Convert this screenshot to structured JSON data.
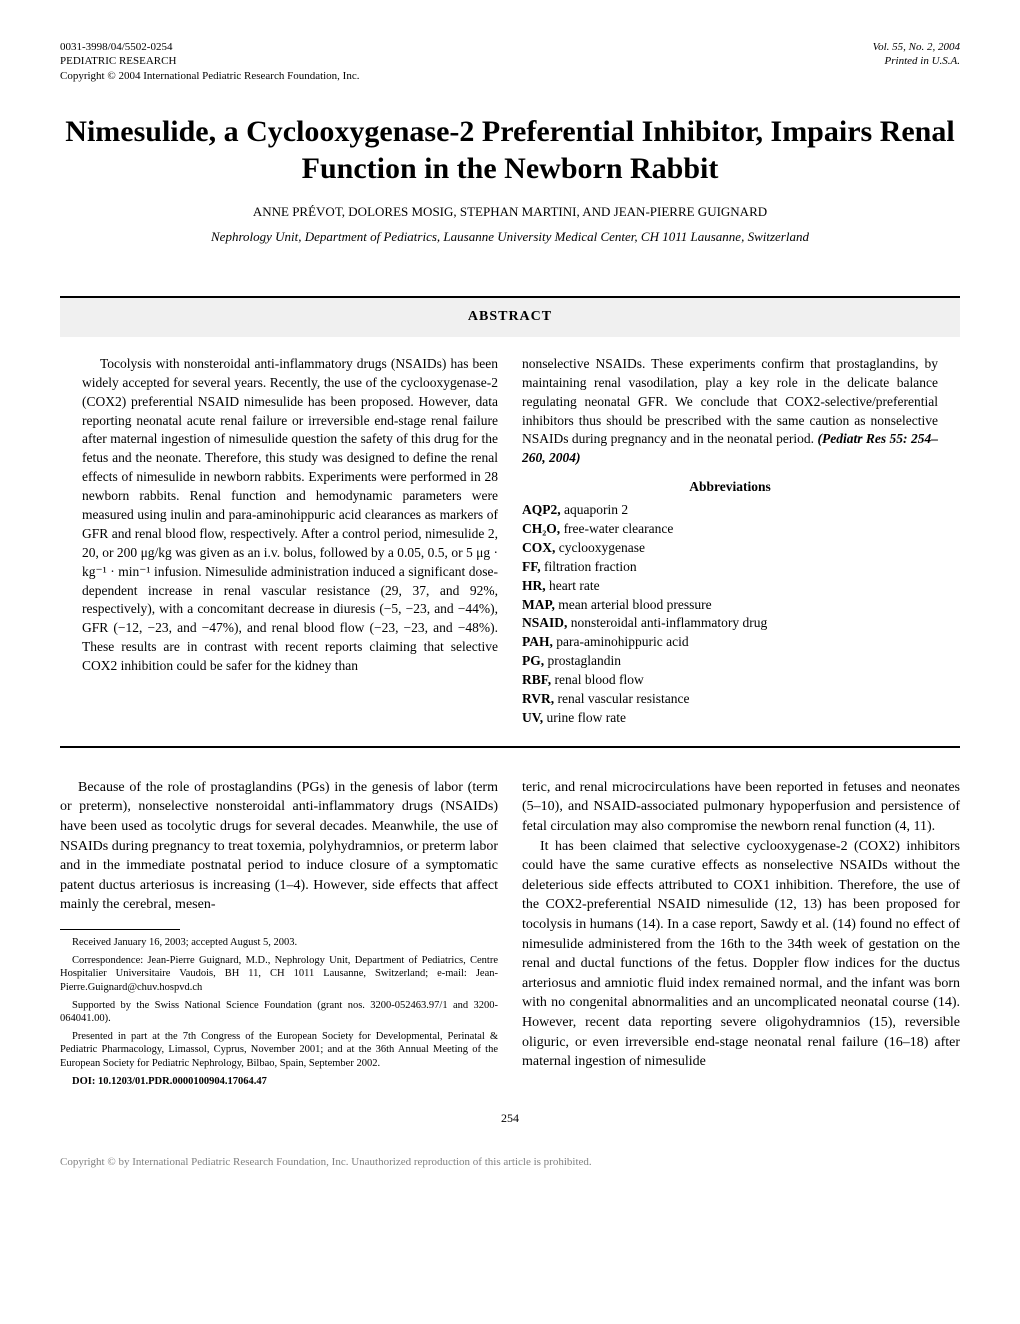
{
  "header": {
    "issn": "0031-3998/04/5502-0254",
    "journal": "PEDIATRIC RESEARCH",
    "copyright": "Copyright © 2004 International Pediatric Research Foundation, Inc.",
    "volume": "Vol. 55, No. 2, 2004",
    "printed": "Printed in U.S.A."
  },
  "title": "Nimesulide, a Cyclooxygenase-2 Preferential Inhibitor, Impairs Renal Function in the Newborn Rabbit",
  "authors": "ANNE PRÉVOT, DOLORES MOSIG, STEPHAN MARTINI, AND JEAN-PIERRE GUIGNARD",
  "affiliation": "Nephrology Unit, Department of Pediatrics, Lausanne University Medical Center, CH 1011 Lausanne, Switzerland",
  "abstract": {
    "heading": "ABSTRACT",
    "left": "Tocolysis with nonsteroidal anti-inflammatory drugs (NSAIDs) has been widely accepted for several years. Recently, the use of the cyclooxygenase-2 (COX2) preferential NSAID nimesulide has been proposed. However, data reporting neonatal acute renal failure or irreversible end-stage renal failure after maternal ingestion of nimesulide question the safety of this drug for the fetus and the neonate. Therefore, this study was designed to define the renal effects of nimesulide in newborn rabbits. Experiments were performed in 28 newborn rabbits. Renal function and hemodynamic parameters were measured using inulin and para-aminohippuric acid clearances as markers of GFR and renal blood flow, respectively. After a control period, nimesulide 2, 20, or 200 μg/kg was given as an i.v. bolus, followed by a 0.05, 0.5, or 5 μg · kg⁻¹ · min⁻¹ infusion. Nimesulide administration induced a significant dose-dependent increase in renal vascular resistance (29, 37, and 92%, respectively), with a concomitant decrease in diuresis (−5, −23, and −44%), GFR (−12, −23, and −47%), and renal blood flow (−23, −23, and −48%). These results are in contrast with recent reports claiming that selective COX2 inhibition could be safer for the kidney than",
    "right_top": "nonselective NSAIDs. These experiments confirm that prostaglandins, by maintaining renal vasodilation, play a key role in the delicate balance regulating neonatal GFR. We conclude that COX2-selective/preferential inhibitors thus should be prescribed with the same caution as nonselective NSAIDs during pregnancy and in the neonatal period. ",
    "citation": "(Pediatr Res 55: 254–260, 2004)",
    "abbrev_heading": "Abbreviations",
    "abbreviations": [
      {
        "k": "AQP2,",
        "v": " aquaporin 2"
      },
      {
        "k": "CH₂O,",
        "v": " free-water clearance"
      },
      {
        "k": "COX,",
        "v": " cyclooxygenase"
      },
      {
        "k": "FF,",
        "v": " filtration fraction"
      },
      {
        "k": "HR,",
        "v": " heart rate"
      },
      {
        "k": "MAP,",
        "v": " mean arterial blood pressure"
      },
      {
        "k": "NSAID,",
        "v": " nonsteroidal anti-inflammatory drug"
      },
      {
        "k": "PAH,",
        "v": " para-aminohippuric acid"
      },
      {
        "k": "PG,",
        "v": " prostaglandin"
      },
      {
        "k": "RBF,",
        "v": " renal blood flow"
      },
      {
        "k": "RVR,",
        "v": " renal vascular resistance"
      },
      {
        "k": "UV,",
        "v": " urine flow rate"
      }
    ]
  },
  "body": {
    "left_p1": "Because of the role of prostaglandins (PGs) in the genesis of labor (term or preterm), nonselective nonsteroidal anti-inflammatory drugs (NSAIDs) have been used as tocolytic drugs for several decades. Meanwhile, the use of NSAIDs during pregnancy to treat toxemia, polyhydramnios, or preterm labor and in the immediate postnatal period to induce closure of a symptomatic patent ductus arteriosus is increasing (1–4). However, side effects that affect mainly the cerebral, mesen-",
    "right_p1": "teric, and renal microcirculations have been reported in fetuses and neonates (5–10), and NSAID-associated pulmonary hypoperfusion and persistence of fetal circulation may also compromise the newborn renal function (4, 11).",
    "right_p2": "It has been claimed that selective cyclooxygenase-2 (COX2) inhibitors could have the same curative effects as nonselective NSAIDs without the deleterious side effects attributed to COX1 inhibition. Therefore, the use of the COX2-preferential NSAID nimesulide (12, 13) has been proposed for tocolysis in humans (14). In a case report, Sawdy et al. (14) found no effect of nimesulide administered from the 16th to the 34th week of gestation on the renal and ductal functions of the fetus. Doppler flow indices for the ductus arteriosus and amniotic fluid index remained normal, and the infant was born with no congenital abnormalities and an uncomplicated neonatal course (14). However, recent data reporting severe oligohydramnios (15), reversible oliguric, or even irreversible end-stage neonatal renal failure (16–18) after maternal ingestion of nimesulide"
  },
  "footnotes": {
    "received": "Received January 16, 2003; accepted August 5, 2003.",
    "correspondence": "Correspondence: Jean-Pierre Guignard, M.D., Nephrology Unit, Department of Pediatrics, Centre Hospitalier Universitaire Vaudois, BH 11, CH 1011 Lausanne, Switzerland; e-mail: Jean-Pierre.Guignard@chuv.hospvd.ch",
    "supported": "Supported by the Swiss National Science Foundation (grant nos. 3200-052463.97/1 and 3200-064041.00).",
    "presented": "Presented in part at the 7th Congress of the European Society for Developmental, Perinatal & Pediatric Pharmacology, Limassol, Cyprus, November 2001; and at the 36th Annual Meeting of the European Society for Pediatric Nephrology, Bilbao, Spain, September 2002.",
    "doi": "DOI: 10.1203/01.PDR.0000100904.17064.47"
  },
  "page_number": "254",
  "footer_copy": "Copyright © by International Pediatric Research Foundation, Inc. Unauthorized reproduction of this article is prohibited."
}
